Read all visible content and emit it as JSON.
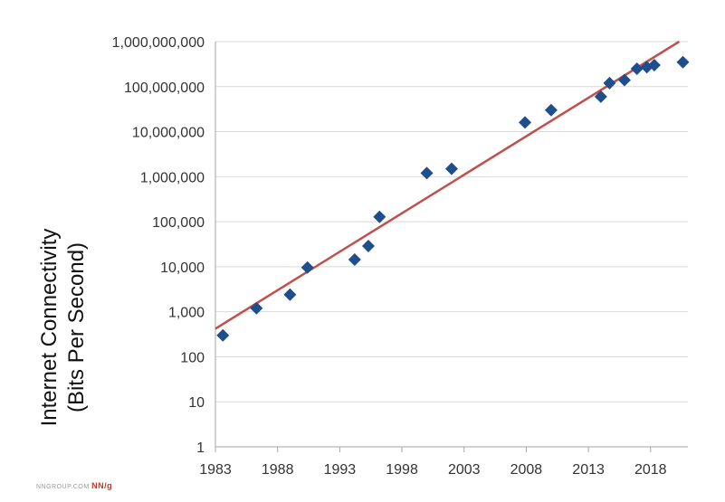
{
  "chart_data": {
    "type": "scatter",
    "title": "",
    "ylabel_line1": "Internet Connectivity",
    "ylabel_line2": "(Bits Per Second)",
    "xlabel": "",
    "y_scale": "log",
    "ylim": [
      1,
      1000000000
    ],
    "xlim": [
      1983,
      2021
    ],
    "y_tick_labels": [
      "1",
      "10",
      "100",
      "1,000",
      "10,000",
      "100,000",
      "1,000,000",
      "10,000,000",
      "100,000,000",
      "1,000,000,000"
    ],
    "x_tick_values": [
      1983,
      1988,
      1993,
      1998,
      2003,
      2008,
      2013,
      2018
    ],
    "x_tick_labels": [
      "1983",
      "1988",
      "1993",
      "1998",
      "2003",
      "2008",
      "2013",
      "2018"
    ],
    "grid": true,
    "series": [
      {
        "marker": "diamond",
        "color": "#1f4e8c",
        "points": [
          {
            "x": 1983.6,
            "y": 300
          },
          {
            "x": 1986.3,
            "y": 1200
          },
          {
            "x": 1989.0,
            "y": 2400
          },
          {
            "x": 1990.4,
            "y": 9600
          },
          {
            "x": 1994.2,
            "y": 14400
          },
          {
            "x": 1995.3,
            "y": 28800
          },
          {
            "x": 1996.2,
            "y": 128000
          },
          {
            "x": 2000.0,
            "y": 1200000
          },
          {
            "x": 2002.0,
            "y": 1500000
          },
          {
            "x": 2007.9,
            "y": 16000000
          },
          {
            "x": 2010.0,
            "y": 30000000
          },
          {
            "x": 2014.0,
            "y": 60000000
          },
          {
            "x": 2014.7,
            "y": 120000000
          },
          {
            "x": 2015.9,
            "y": 140000000
          },
          {
            "x": 2016.9,
            "y": 250000000
          },
          {
            "x": 2017.7,
            "y": 270000000
          },
          {
            "x": 2018.3,
            "y": 300000000
          },
          {
            "x": 2020.6,
            "y": 350000000
          }
        ]
      }
    ],
    "trendline": {
      "color": "#c0504d",
      "points": [
        {
          "x": 1983,
          "y": 420
        },
        {
          "x": 2020.3,
          "y": 1000000000
        }
      ]
    }
  },
  "watermark": {
    "text": "NNGROUP.COM",
    "mark": "NN/g"
  }
}
